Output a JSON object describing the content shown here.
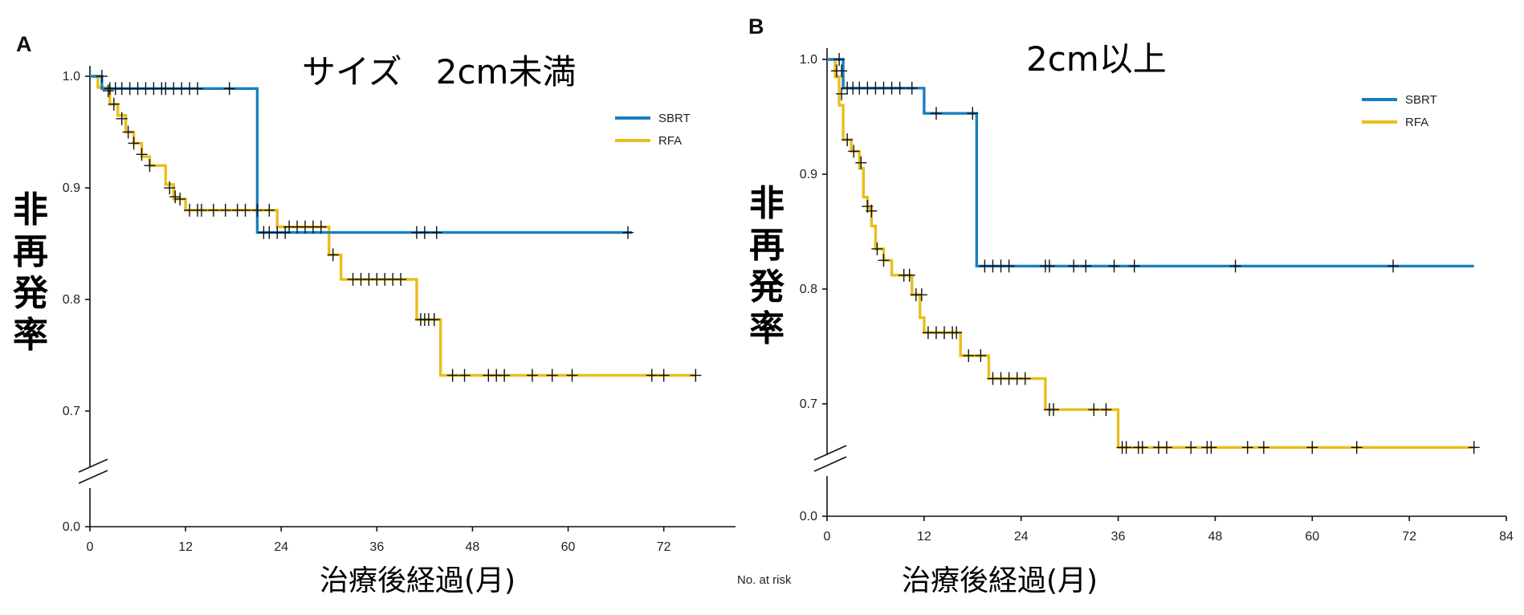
{
  "chart_data": [
    {
      "type": "line",
      "panel_label": "A",
      "title": "サイズ　2cm未満",
      "xlabel": "治療後経過(月)",
      "ylabel": "非再発率",
      "x_ticks": [
        0,
        12,
        24,
        36,
        48,
        60,
        72
      ],
      "y_ticks": [
        0.0,
        0.7,
        0.8,
        0.9,
        1.0
      ],
      "y_tick_labels": [
        "0.0",
        "0.7",
        "0.8",
        "0.9",
        "1.0"
      ],
      "xlim": [
        0,
        81
      ],
      "ylim": [
        0.0,
        1.0
      ],
      "y_axis_break": true,
      "legend_position": "top-right",
      "colors": {
        "SBRT": "#1a7fc1",
        "RFA": "#e9be1c"
      },
      "series": [
        {
          "name": "SBRT",
          "step": [
            [
              0,
              1.0
            ],
            [
              1.5,
              1.0
            ],
            [
              1.5,
              0.989
            ],
            [
              21,
              0.989
            ],
            [
              21,
              0.86
            ],
            [
              68,
              0.86
            ]
          ],
          "censored": [
            [
              2.5,
              0.989
            ],
            [
              3.2,
              0.989
            ],
            [
              4,
              0.989
            ],
            [
              5,
              0.989
            ],
            [
              6,
              0.989
            ],
            [
              7,
              0.989
            ],
            [
              8,
              0.989
            ],
            [
              9,
              0.989
            ],
            [
              9.5,
              0.989
            ],
            [
              10.5,
              0.989
            ],
            [
              11.5,
              0.989
            ],
            [
              12.5,
              0.989
            ],
            [
              13.5,
              0.989
            ],
            [
              17.5,
              0.989
            ],
            [
              21.8,
              0.86
            ],
            [
              22.5,
              0.86
            ],
            [
              23.5,
              0.86
            ],
            [
              24.5,
              0.86
            ],
            [
              41,
              0.86
            ],
            [
              42,
              0.86
            ],
            [
              43.5,
              0.86
            ],
            [
              67.5,
              0.86
            ]
          ]
        },
        {
          "name": "RFA",
          "step": [
            [
              0,
              1.0
            ],
            [
              1,
              1.0
            ],
            [
              1,
              0.99
            ],
            [
              2.5,
              0.99
            ],
            [
              2.5,
              0.975
            ],
            [
              3.5,
              0.975
            ],
            [
              3.5,
              0.965
            ],
            [
              4.5,
              0.965
            ],
            [
              4.5,
              0.95
            ],
            [
              5.5,
              0.95
            ],
            [
              5.5,
              0.94
            ],
            [
              6.5,
              0.94
            ],
            [
              6.5,
              0.928
            ],
            [
              7.5,
              0.928
            ],
            [
              7.5,
              0.92
            ],
            [
              9.5,
              0.92
            ],
            [
              9.5,
              0.903
            ],
            [
              10.5,
              0.903
            ],
            [
              10.5,
              0.89
            ],
            [
              12,
              0.89
            ],
            [
              12,
              0.88
            ],
            [
              23.5,
              0.88
            ],
            [
              23.5,
              0.865
            ],
            [
              30,
              0.865
            ],
            [
              30,
              0.84
            ],
            [
              31.5,
              0.84
            ],
            [
              31.5,
              0.818
            ],
            [
              41,
              0.818
            ],
            [
              41,
              0.782
            ],
            [
              44,
              0.782
            ],
            [
              44,
              0.732
            ],
            [
              76,
              0.732
            ]
          ],
          "censored": [
            [
              1.5,
              1.0
            ],
            [
              2.3,
              0.987
            ],
            [
              3,
              0.975
            ],
            [
              4,
              0.962
            ],
            [
              4.8,
              0.95
            ],
            [
              5.5,
              0.94
            ],
            [
              6.5,
              0.93
            ],
            [
              7.5,
              0.92
            ],
            [
              10,
              0.9
            ],
            [
              10.7,
              0.892
            ],
            [
              11.3,
              0.89
            ],
            [
              12.5,
              0.88
            ],
            [
              13.5,
              0.88
            ],
            [
              14,
              0.88
            ],
            [
              15.5,
              0.88
            ],
            [
              17,
              0.88
            ],
            [
              18.5,
              0.88
            ],
            [
              19.5,
              0.88
            ],
            [
              21,
              0.88
            ],
            [
              22.5,
              0.88
            ],
            [
              25,
              0.865
            ],
            [
              26,
              0.865
            ],
            [
              27,
              0.865
            ],
            [
              28,
              0.865
            ],
            [
              29,
              0.865
            ],
            [
              30.5,
              0.84
            ],
            [
              33,
              0.818
            ],
            [
              34,
              0.818
            ],
            [
              35,
              0.818
            ],
            [
              36,
              0.818
            ],
            [
              37,
              0.818
            ],
            [
              38,
              0.818
            ],
            [
              39,
              0.818
            ],
            [
              41.5,
              0.782
            ],
            [
              42,
              0.782
            ],
            [
              42.5,
              0.782
            ],
            [
              43.2,
              0.782
            ],
            [
              45.5,
              0.732
            ],
            [
              47,
              0.732
            ],
            [
              50,
              0.732
            ],
            [
              51,
              0.732
            ],
            [
              52,
              0.732
            ],
            [
              55.5,
              0.732
            ],
            [
              58,
              0.732
            ],
            [
              60.5,
              0.732
            ],
            [
              70.5,
              0.732
            ],
            [
              72,
              0.732
            ],
            [
              76,
              0.732
            ]
          ]
        }
      ]
    },
    {
      "type": "line",
      "panel_label": "B",
      "title": "2cm以上",
      "xlabel": "治療後経過(月)",
      "ylabel": "非再発率",
      "x_ticks": [
        0,
        12,
        24,
        36,
        48,
        60,
        72,
        84
      ],
      "y_ticks": [
        0.0,
        0.7,
        0.8,
        0.9,
        1.0
      ],
      "y_tick_labels": [
        "0.0",
        "0.7",
        "0.8",
        "0.9",
        "1.0"
      ],
      "xlim": [
        0,
        84
      ],
      "ylim": [
        0.0,
        1.0
      ],
      "y_axis_break": true,
      "legend_position": "top-right",
      "colors": {
        "SBRT": "#1a7fc1",
        "RFA": "#e9be1c"
      },
      "series": [
        {
          "name": "SBRT",
          "step": [
            [
              0,
              1.0
            ],
            [
              2,
              1.0
            ],
            [
              2,
              0.975
            ],
            [
              12,
              0.975
            ],
            [
              12,
              0.953
            ],
            [
              18.5,
              0.953
            ],
            [
              18.5,
              0.82
            ],
            [
              80,
              0.82
            ]
          ],
          "censored": [
            [
              1.5,
              1.0
            ],
            [
              1.8,
              0.99
            ],
            [
              2.5,
              0.975
            ],
            [
              3.2,
              0.975
            ],
            [
              4,
              0.975
            ],
            [
              5,
              0.975
            ],
            [
              6,
              0.975
            ],
            [
              7,
              0.975
            ],
            [
              8,
              0.975
            ],
            [
              9,
              0.975
            ],
            [
              10.5,
              0.975
            ],
            [
              13.5,
              0.953
            ],
            [
              18,
              0.953
            ],
            [
              19.5,
              0.82
            ],
            [
              20.5,
              0.82
            ],
            [
              21.5,
              0.82
            ],
            [
              22.5,
              0.82
            ],
            [
              27,
              0.82
            ],
            [
              27.5,
              0.82
            ],
            [
              30.5,
              0.82
            ],
            [
              32,
              0.82
            ],
            [
              35.5,
              0.82
            ],
            [
              38,
              0.82
            ],
            [
              50.5,
              0.82
            ],
            [
              70,
              0.82
            ]
          ]
        },
        {
          "name": "RFA",
          "step": [
            [
              0,
              1.0
            ],
            [
              1,
              1.0
            ],
            [
              1,
              0.985
            ],
            [
              1.5,
              0.985
            ],
            [
              1.5,
              0.96
            ],
            [
              2,
              0.96
            ],
            [
              2,
              0.93
            ],
            [
              3,
              0.93
            ],
            [
              3,
              0.92
            ],
            [
              4,
              0.92
            ],
            [
              4,
              0.905
            ],
            [
              4.5,
              0.905
            ],
            [
              4.5,
              0.88
            ],
            [
              5,
              0.88
            ],
            [
              5,
              0.87
            ],
            [
              5.5,
              0.87
            ],
            [
              5.5,
              0.855
            ],
            [
              6,
              0.855
            ],
            [
              6,
              0.835
            ],
            [
              7,
              0.835
            ],
            [
              7,
              0.825
            ],
            [
              8,
              0.825
            ],
            [
              8,
              0.812
            ],
            [
              10.5,
              0.812
            ],
            [
              10.5,
              0.795
            ],
            [
              11.5,
              0.795
            ],
            [
              11.5,
              0.775
            ],
            [
              12,
              0.775
            ],
            [
              12,
              0.762
            ],
            [
              16.5,
              0.762
            ],
            [
              16.5,
              0.742
            ],
            [
              20,
              0.742
            ],
            [
              20,
              0.722
            ],
            [
              27,
              0.722
            ],
            [
              27,
              0.695
            ],
            [
              36,
              0.695
            ],
            [
              36,
              0.662
            ],
            [
              80,
              0.662
            ]
          ],
          "censored": [
            [
              1.2,
              0.99
            ],
            [
              1.8,
              0.97
            ],
            [
              2.5,
              0.93
            ],
            [
              3.3,
              0.92
            ],
            [
              4.2,
              0.91
            ],
            [
              5,
              0.872
            ],
            [
              5.5,
              0.868
            ],
            [
              6.2,
              0.835
            ],
            [
              7,
              0.825
            ],
            [
              9.5,
              0.812
            ],
            [
              10.2,
              0.812
            ],
            [
              11,
              0.795
            ],
            [
              11.7,
              0.795
            ],
            [
              12.5,
              0.762
            ],
            [
              13.5,
              0.762
            ],
            [
              14.5,
              0.762
            ],
            [
              15.5,
              0.762
            ],
            [
              16,
              0.762
            ],
            [
              17.5,
              0.742
            ],
            [
              19,
              0.742
            ],
            [
              20.5,
              0.722
            ],
            [
              21.5,
              0.722
            ],
            [
              22.5,
              0.722
            ],
            [
              23.5,
              0.722
            ],
            [
              24.5,
              0.722
            ],
            [
              27.5,
              0.695
            ],
            [
              28,
              0.695
            ],
            [
              33,
              0.695
            ],
            [
              34.5,
              0.695
            ],
            [
              36.5,
              0.662
            ],
            [
              37,
              0.662
            ],
            [
              38.5,
              0.662
            ],
            [
              39,
              0.662
            ],
            [
              41,
              0.662
            ],
            [
              42,
              0.662
            ],
            [
              45,
              0.662
            ],
            [
              47,
              0.662
            ],
            [
              47.5,
              0.662
            ],
            [
              52,
              0.662
            ],
            [
              54,
              0.662
            ],
            [
              60,
              0.662
            ],
            [
              65.5,
              0.662
            ],
            [
              80,
              0.662
            ]
          ]
        }
      ]
    }
  ],
  "footer_note": "No. at risk"
}
